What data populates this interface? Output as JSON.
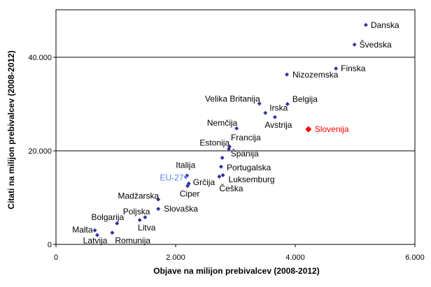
{
  "chart_data": {
    "type": "scatter",
    "title": "",
    "xlabel": "Objave na milijon prebivalcev (2008-2012)",
    "ylabel": "Citati na milijon prebivalcev (2008-2012)",
    "xlim": [
      0,
      6000
    ],
    "ylim": [
      0,
      50000
    ],
    "x_ticks": [
      0,
      2000,
      4000,
      6000
    ],
    "x_tick_labels": [
      "0",
      "2.000",
      "4.000",
      "6.000"
    ],
    "y_ticks": [
      0,
      20000,
      40000
    ],
    "y_tick_labels": [
      "0",
      "20.000",
      "40.000"
    ],
    "grid": "horizontal",
    "colors": {
      "default": "#333399",
      "highlight": "#ff0000",
      "eu": "#5b7cf0"
    },
    "points": [
      {
        "label": "Danska",
        "x": 5180,
        "y": 46900
      },
      {
        "label": "Švedska",
        "x": 4990,
        "y": 42700
      },
      {
        "label": "Finska",
        "x": 4680,
        "y": 37600
      },
      {
        "label": "Nizozemska",
        "x": 3860,
        "y": 36300
      },
      {
        "label": "Belgija",
        "x": 3870,
        "y": 30000
      },
      {
        "label": "Velika Britanija",
        "x": 3400,
        "y": 30100
      },
      {
        "label": "Irska",
        "x": 3500,
        "y": 28100
      },
      {
        "label": "Avstrija",
        "x": 3660,
        "y": 27200
      },
      {
        "label": "Slovenija",
        "x": 4220,
        "y": 24600,
        "highlight": true
      },
      {
        "label": "Nemčija",
        "x": 3020,
        "y": 24800
      },
      {
        "label": "Francija",
        "x": 2900,
        "y": 20900
      },
      {
        "label": "Estonija",
        "x": 2890,
        "y": 20400
      },
      {
        "label": "Španija",
        "x": 2780,
        "y": 18500
      },
      {
        "label": "Italija",
        "x": 2190,
        "y": 14700
      },
      {
        "label": "EU-27",
        "x": 2170,
        "y": 14400,
        "eu": true
      },
      {
        "label": "Grčija",
        "x": 2220,
        "y": 13000
      },
      {
        "label": "Ciper",
        "x": 2200,
        "y": 12500
      },
      {
        "label": "Portugalska",
        "x": 2760,
        "y": 16600
      },
      {
        "label": "Luksemburg",
        "x": 2790,
        "y": 14800
      },
      {
        "label": "Češka",
        "x": 2730,
        "y": 14500
      },
      {
        "label": "Madžarska",
        "x": 1710,
        "y": 9600
      },
      {
        "label": "Slovaška",
        "x": 1710,
        "y": 7600
      },
      {
        "label": "Poljska",
        "x": 1490,
        "y": 5800
      },
      {
        "label": "Litva",
        "x": 1400,
        "y": 5200
      },
      {
        "label": "Bolgarija",
        "x": 1020,
        "y": 4500
      },
      {
        "label": "Romunija",
        "x": 940,
        "y": 2500
      },
      {
        "label": "Malta",
        "x": 650,
        "y": 3000
      },
      {
        "label": "Latvija",
        "x": 690,
        "y": 2000
      }
    ]
  }
}
